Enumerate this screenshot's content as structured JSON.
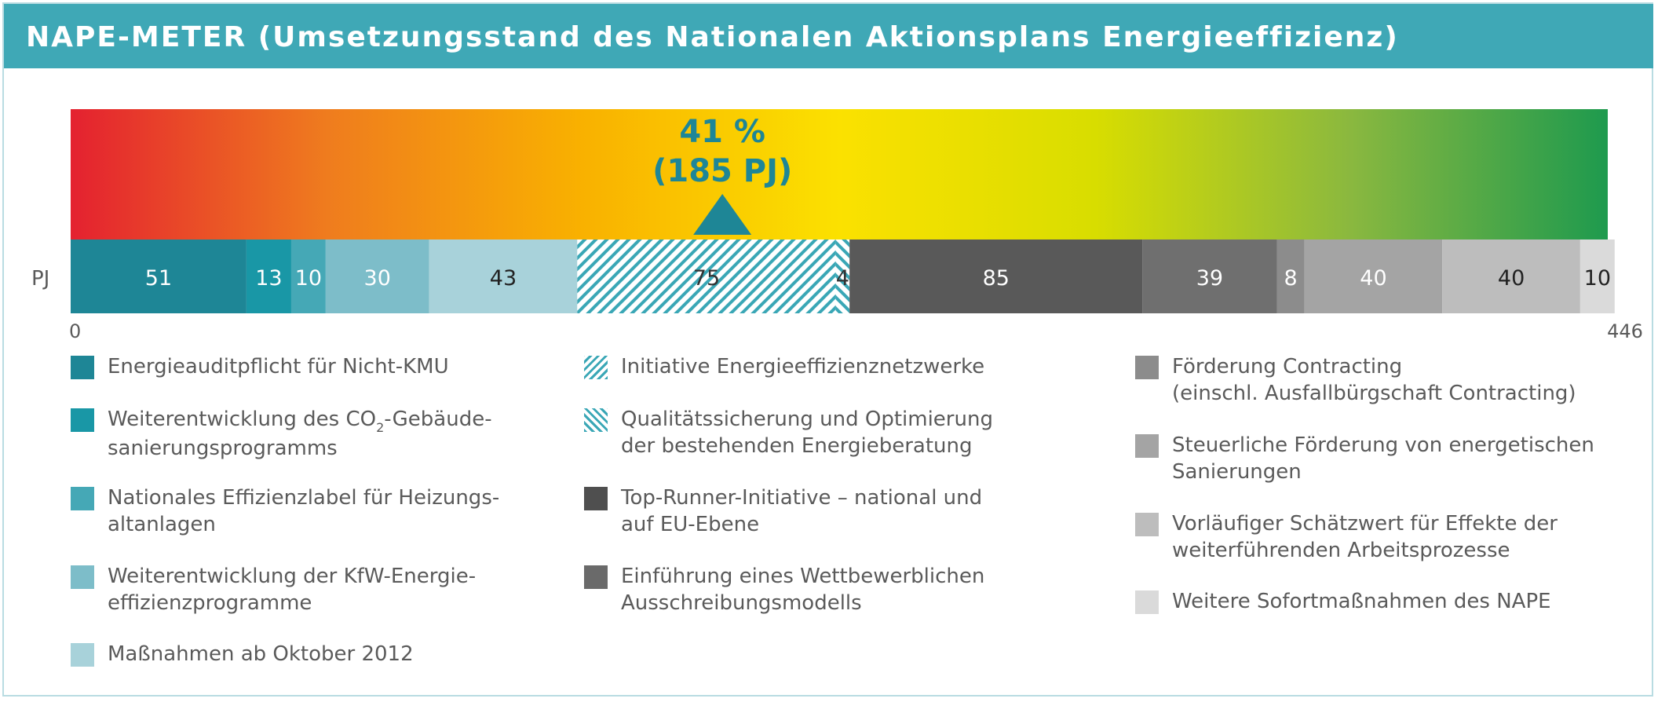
{
  "title": "NAPE-METER (Umsetzungsstand des Nationalen Aktionsplans Energieeffizienz)",
  "chart_data": {
    "type": "bar",
    "orientation": "horizontal-stacked",
    "unit": "PJ",
    "axis_label": "PJ",
    "xlim": [
      0,
      446
    ],
    "tick_labels": [
      "0",
      "446"
    ],
    "gradient": [
      "#e42130",
      "#ef7c1e",
      "#f9b100",
      "#fbe100",
      "#d8dd00",
      "#8ab83f",
      "#1e9a4e"
    ],
    "marker": {
      "value": 185,
      "percent_label": "41 %",
      "pj_label": "(185 PJ)",
      "color": "#1e8696"
    },
    "segments": [
      {
        "label": "51",
        "value": 51,
        "color": "#1e8696",
        "pattern": "solid",
        "text_color": "#ffffff"
      },
      {
        "label": "13",
        "value": 13,
        "color": "#1997a6",
        "pattern": "solid",
        "text_color": "#ffffff"
      },
      {
        "label": "10",
        "value": 10,
        "color": "#45a8b6",
        "pattern": "solid",
        "text_color": "#ffffff"
      },
      {
        "label": "30",
        "value": 30,
        "color": "#7dbdc9",
        "pattern": "solid",
        "text_color": "#ffffff"
      },
      {
        "label": "43",
        "value": 43,
        "color": "#a8d2da",
        "pattern": "solid",
        "text_color": "#222222"
      },
      {
        "label": "75",
        "value": 75,
        "color": "#3aa7b6",
        "pattern": "hatch-right",
        "text_color": "#333333"
      },
      {
        "label": "4",
        "value": 4,
        "color": "#3aa7b6",
        "pattern": "hatch-left",
        "text_color": "#333333"
      },
      {
        "label": "85",
        "value": 85,
        "color": "#595959",
        "pattern": "solid",
        "text_color": "#ffffff"
      },
      {
        "label": "39",
        "value": 39,
        "color": "#6f6f6f",
        "pattern": "solid",
        "text_color": "#ffffff"
      },
      {
        "label": "8",
        "value": 8,
        "color": "#8c8c8c",
        "pattern": "solid",
        "text_color": "#ffffff"
      },
      {
        "label": "40",
        "value": 40,
        "color": "#a4a4a4",
        "pattern": "solid",
        "text_color": "#ffffff"
      },
      {
        "label": "40",
        "value": 40,
        "color": "#bdbdbd",
        "pattern": "solid",
        "text_color": "#222222"
      },
      {
        "label": "10",
        "value": 10,
        "color": "#dadada",
        "pattern": "solid",
        "text_color": "#222222"
      }
    ]
  },
  "legend": {
    "col1": [
      {
        "lines": [
          "Energieauditpflicht für Nicht-KMU"
        ],
        "color": "#1e8696",
        "pattern": "solid"
      },
      {
        "lines": [
          "Weiterentwicklung des CO",
          "sanierungsprogramms"
        ],
        "sub": "2",
        "after_sub": "-Gebäude-",
        "color": "#1997a6",
        "pattern": "solid"
      },
      {
        "lines": [
          "Nationales Effizienzlabel für Heizungs-",
          "altanlagen"
        ],
        "color": "#45a8b6",
        "pattern": "solid"
      },
      {
        "lines": [
          "Weiterentwicklung der KfW-Energie-",
          "effizienzprogramme"
        ],
        "color": "#7dbdc9",
        "pattern": "solid"
      },
      {
        "lines": [
          " Maßnahmen ab Oktober 2012"
        ],
        "color": "#a8d2da",
        "pattern": "solid"
      }
    ],
    "col2": [
      {
        "lines": [
          "Initiative Energieeffizienznetzwerke"
        ],
        "color": "#3aa7b6",
        "pattern": "hatch-right"
      },
      {
        "lines": [
          "Qualitätssicherung und Optimierung",
          "der bestehenden Energieberatung"
        ],
        "color": "#3aa7b6",
        "pattern": "hatch-left"
      },
      {
        "lines": [
          "Top-Runner-Initiative – national und",
          "auf EU-Ebene"
        ],
        "color": "#4f4f4f",
        "pattern": "solid"
      },
      {
        "lines": [
          "Einführung eines Wettbewerblichen",
          "Ausschreibungsmodells"
        ],
        "color": "#6a6a6a",
        "pattern": "solid"
      }
    ],
    "col3": [
      {
        "lines": [
          "Förderung Contracting",
          "(einschl. Ausfallbürgschaft Contracting)"
        ],
        "color": "#8c8c8c",
        "pattern": "solid"
      },
      {
        "lines": [
          "Steuerliche Förderung von energetischen",
          "Sanierungen"
        ],
        "color": "#a4a4a4",
        "pattern": "solid"
      },
      {
        "lines": [
          "Vorläufiger Schätzwert für Effekte der",
          "weiterführenden Arbeitsprozesse"
        ],
        "color": "#bdbdbd",
        "pattern": "solid"
      },
      {
        "lines": [
          "Weitere Sofortmaßnahmen des NAPE"
        ],
        "color": "#dadada",
        "pattern": "solid"
      }
    ]
  }
}
